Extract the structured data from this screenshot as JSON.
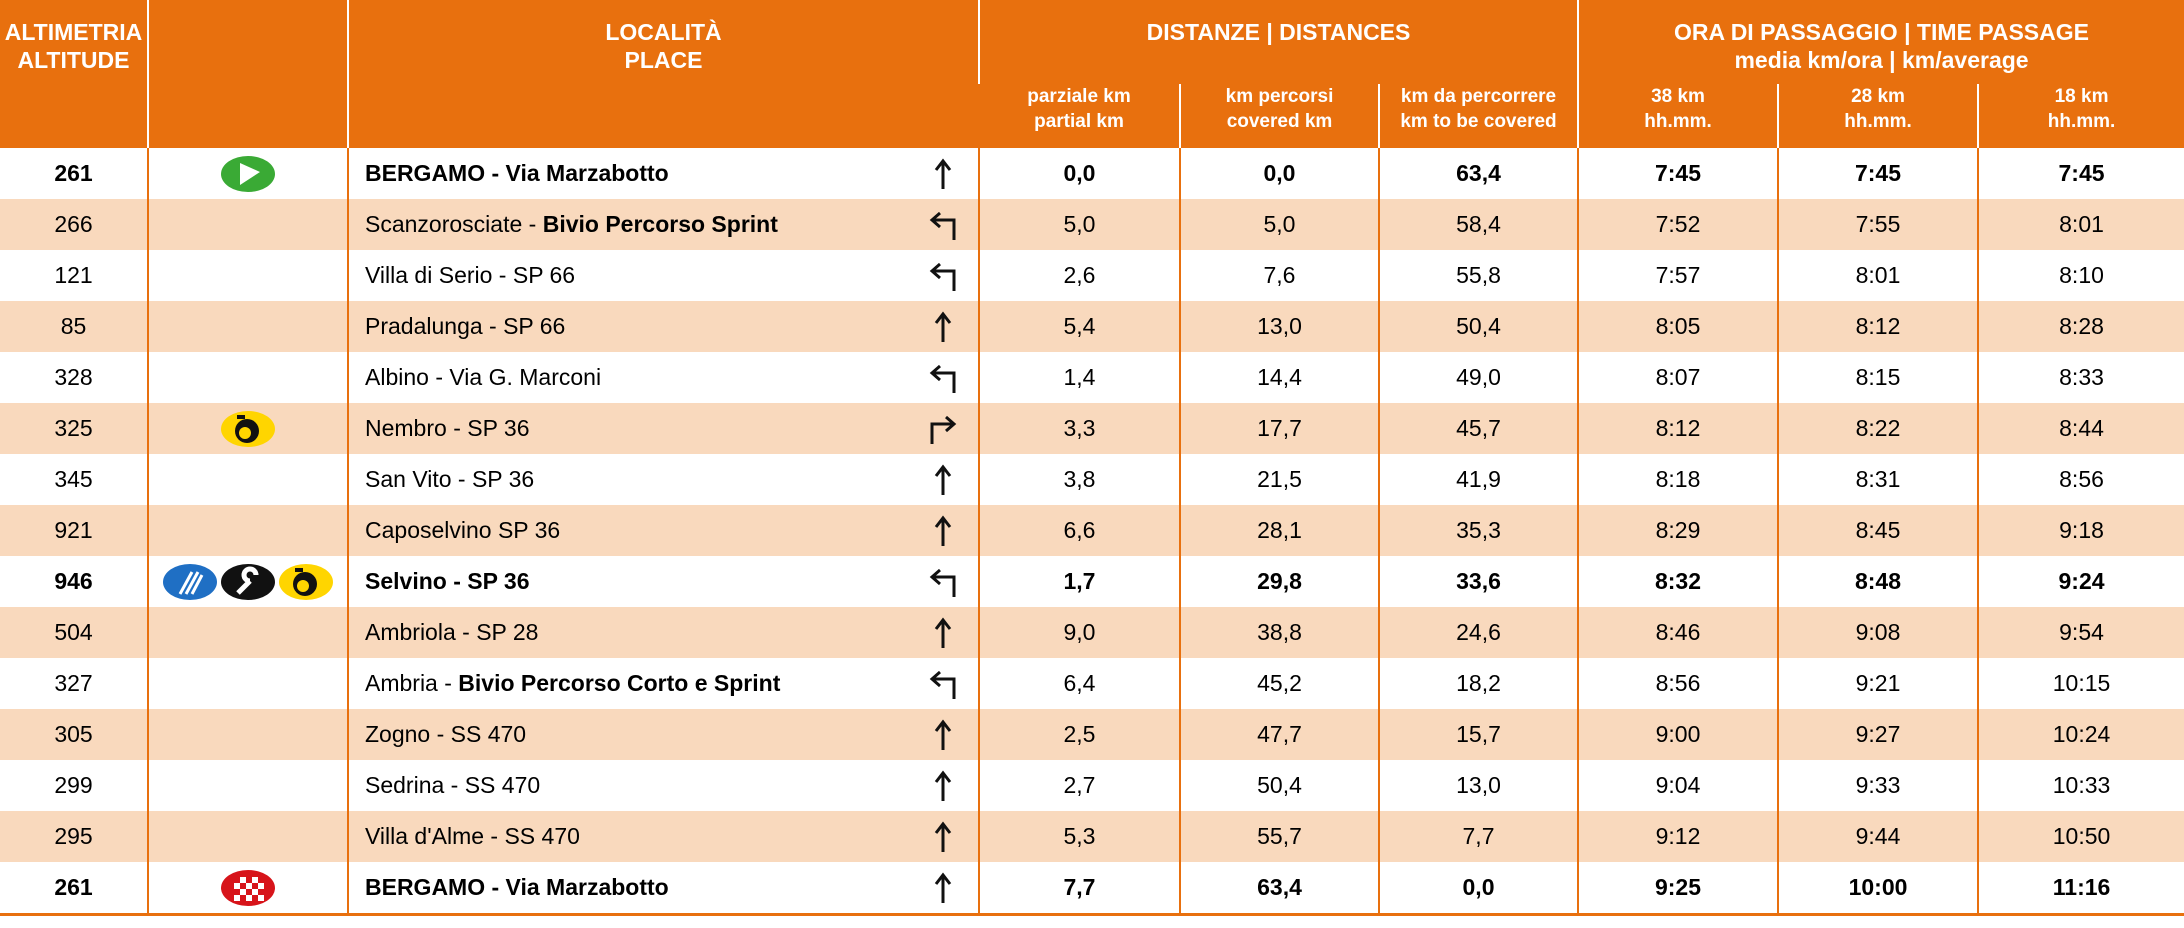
{
  "header": {
    "altitude": [
      "ALTIMETRIA",
      "ALTITUDE"
    ],
    "place": [
      "LOCALITÀ",
      "PLACE"
    ],
    "distances": "DISTANZE | DISTANCES",
    "time": [
      "ORA DI PASSAGGIO | TIME PASSAGE",
      "media km/ora | km/average"
    ],
    "subcolumns": [
      [
        "parziale km",
        "partial km"
      ],
      [
        "km percorsi",
        "covered km"
      ],
      [
        "km da percorrere",
        "km to be covered"
      ],
      [
        "38 km",
        "hh.mm."
      ],
      [
        "28 km",
        "hh.mm."
      ],
      [
        "18 km",
        "hh.mm."
      ]
    ]
  },
  "rows": [
    {
      "altitude": "261",
      "icons": [
        "start"
      ],
      "bold": true,
      "place": [
        {
          "text": "BERGAMO - Via Marzabotto",
          "bold": true
        }
      ],
      "turn": "straight",
      "values": [
        "0,0",
        "0,0",
        "63,4",
        "7:45",
        "7:45",
        "7:45"
      ]
    },
    {
      "altitude": "266",
      "icons": [],
      "bold": false,
      "place": [
        {
          "text": "Scanzorosciate - ",
          "bold": false
        },
        {
          "text": "Bivio Percorso Sprint",
          "bold": true
        }
      ],
      "turn": "left",
      "values": [
        "5,0",
        "5,0",
        "58,4",
        "7:52",
        "7:55",
        "8:01"
      ]
    },
    {
      "altitude": "121",
      "icons": [],
      "bold": false,
      "place": [
        {
          "text": "Villa di Serio - SP 66",
          "bold": false
        }
      ],
      "turn": "left",
      "values": [
        "2,6",
        "7,6",
        "55,8",
        "7:57",
        "8:01",
        "8:10"
      ]
    },
    {
      "altitude": "85",
      "icons": [],
      "bold": false,
      "place": [
        {
          "text": "Pradalunga - SP 66",
          "bold": false
        }
      ],
      "turn": "straight",
      "values": [
        "5,4",
        "13,0",
        "50,4",
        "8:05",
        "8:12",
        "8:28"
      ]
    },
    {
      "altitude": "328",
      "icons": [],
      "bold": false,
      "place": [
        {
          "text": "Albino - Via G. Marconi",
          "bold": false
        }
      ],
      "turn": "left",
      "values": [
        "1,4",
        "14,4",
        "49,0",
        "8:07",
        "8:15",
        "8:33"
      ]
    },
    {
      "altitude": "325",
      "icons": [
        "timer"
      ],
      "bold": false,
      "place": [
        {
          "text": "Nembro - SP 36",
          "bold": false
        }
      ],
      "turn": "right",
      "values": [
        "3,3",
        "17,7",
        "45,7",
        "8:12",
        "8:22",
        "8:44"
      ]
    },
    {
      "altitude": "345",
      "icons": [],
      "bold": false,
      "place": [
        {
          "text": "San Vito - SP 36",
          "bold": false
        }
      ],
      "turn": "straight",
      "values": [
        "3,8",
        "21,5",
        "41,9",
        "8:18",
        "8:31",
        "8:56"
      ]
    },
    {
      "altitude": "921",
      "icons": [],
      "bold": false,
      "place": [
        {
          "text": "Caposelvino SP 36",
          "bold": false
        }
      ],
      "turn": "straight",
      "values": [
        "6,6",
        "28,1",
        "35,3",
        "8:29",
        "8:45",
        "9:18"
      ]
    },
    {
      "altitude": "946",
      "icons": [
        "food",
        "wrench",
        "timer"
      ],
      "bold": true,
      "place": [
        {
          "text": "Selvino - SP 36",
          "bold": true
        }
      ],
      "turn": "left",
      "values": [
        "1,7",
        "29,8",
        "33,6",
        "8:32",
        "8:48",
        "9:24"
      ]
    },
    {
      "altitude": "504",
      "icons": [],
      "bold": false,
      "place": [
        {
          "text": "Ambriola - SP 28",
          "bold": false
        }
      ],
      "turn": "straight",
      "values": [
        "9,0",
        "38,8",
        "24,6",
        "8:46",
        "9:08",
        "9:54"
      ]
    },
    {
      "altitude": "327",
      "icons": [],
      "bold": false,
      "place": [
        {
          "text": "Ambria - ",
          "bold": false
        },
        {
          "text": "Bivio Percorso Corto e Sprint",
          "bold": true
        }
      ],
      "turn": "left",
      "values": [
        "6,4",
        "45,2",
        "18,2",
        "8:56",
        "9:21",
        "10:15"
      ]
    },
    {
      "altitude": "305",
      "icons": [],
      "bold": false,
      "place": [
        {
          "text": "Zogno - SS 470",
          "bold": false
        }
      ],
      "turn": "straight",
      "values": [
        "2,5",
        "47,7",
        "15,7",
        "9:00",
        "9:27",
        "10:24"
      ]
    },
    {
      "altitude": "299",
      "icons": [],
      "bold": false,
      "place": [
        {
          "text": "Sedrina - SS 470",
          "bold": false
        }
      ],
      "turn": "straight",
      "values": [
        "2,7",
        "50,4",
        "13,0",
        "9:04",
        "9:33",
        "10:33"
      ]
    },
    {
      "altitude": "295",
      "icons": [],
      "bold": false,
      "place": [
        {
          "text": "Villa d'Alme - SS 470",
          "bold": false
        }
      ],
      "turn": "straight",
      "values": [
        "5,3",
        "55,7",
        "7,7",
        "9:12",
        "9:44",
        "10:50"
      ]
    },
    {
      "altitude": "261",
      "icons": [
        "finish"
      ],
      "bold": true,
      "place": [
        {
          "text": "BERGAMO - Via Marzabotto",
          "bold": true
        }
      ],
      "turn": "straight",
      "values": [
        "7,7",
        "63,4",
        "0,0",
        "9:25",
        "10:00",
        "11:16"
      ]
    }
  ]
}
